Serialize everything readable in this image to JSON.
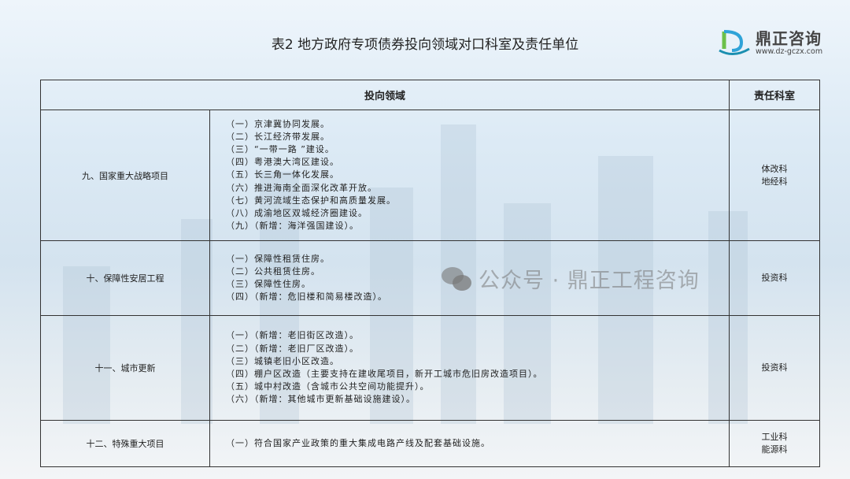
{
  "title": "表2 地方政府专项债券投向领域对口科室及责任单位",
  "logo": {
    "name": "鼎正咨询",
    "url": "www.dz-gczx.com"
  },
  "table": {
    "headers": [
      "投向领域",
      "责任科室"
    ],
    "rows": [
      {
        "category": "九、国家重大战略项目",
        "items": [
          "（一）京津冀协同发展。",
          "（二）长江经济带发展。",
          "（三）“一带一路 ”建设。",
          "（四）粤港澳大湾区建设。",
          "（五）长三角一体化发展。",
          "（六）推进海南全面深化改革开放。",
          "（七）黄河流域生态保护和高质量发展。",
          "（八）成渝地区双城经济圈建设。",
          "（九）（新增：海洋强国建设）。"
        ],
        "offices": [
          "体改科",
          "地经科"
        ]
      },
      {
        "category": "十、保障性安居工程",
        "items": [
          "（一）保障性租赁住房。",
          "（二）公共租赁住房。",
          "（三）保障性住房。",
          "（四）（新增：危旧楼和简易楼改造）。"
        ],
        "offices": [
          "投资科"
        ]
      },
      {
        "category": "十一、城市更新",
        "items": [
          "（一）（新增：老旧街区改造）。",
          "（二）（新增：老旧厂区改造）。",
          "（三）城镇老旧小区改造。",
          "（四）棚户区改造（主要支持在建收尾项目，新开工城市危旧房改造项目）。",
          "（五）城中村改造（含城市公共空间功能提升）。",
          "（六）（新增：其他城市更新基础设施建设）。"
        ],
        "offices": [
          "投资科"
        ]
      },
      {
        "category": "十二、特殊重大项目",
        "items": [
          "（一）符合国家产业政策的重大集成电路产线及配套基础设施。"
        ],
        "offices": [
          "工业科",
          "能源科"
        ]
      }
    ]
  },
  "watermark": "公众号 · 鼎正工程咨询"
}
